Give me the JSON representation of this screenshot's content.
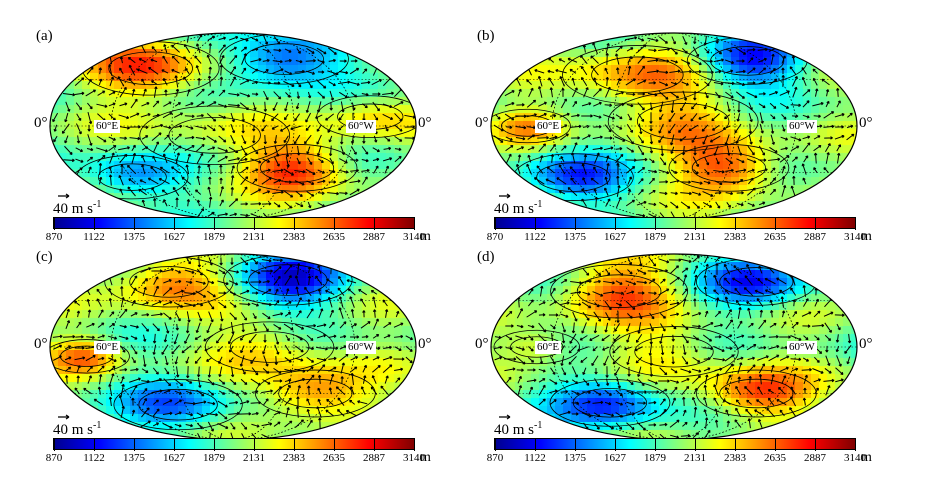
{
  "panels": [
    {
      "id": "a",
      "label": "(a)"
    },
    {
      "id": "b",
      "label": "(b)"
    },
    {
      "id": "c",
      "label": "(c)"
    },
    {
      "id": "d",
      "label": "(d)"
    }
  ],
  "map": {
    "lon_left_label": "0°",
    "lon_right_label": "0°",
    "east_tag": "60°E",
    "west_tag": "60°W",
    "wind_reference": {
      "value": "40",
      "unit": "m s",
      "exponent": "-1"
    }
  },
  "colorbar": {
    "ticks": [
      "870",
      "1122",
      "1375",
      "1627",
      "1879",
      "2131",
      "2383",
      "2635",
      "2887",
      "3140"
    ],
    "unit": "m",
    "colormap": [
      "#00008f",
      "#0000ff",
      "#0080ff",
      "#00ffff",
      "#80ff80",
      "#ffff00",
      "#ff8000",
      "#ff0000",
      "#800000"
    ]
  }
}
